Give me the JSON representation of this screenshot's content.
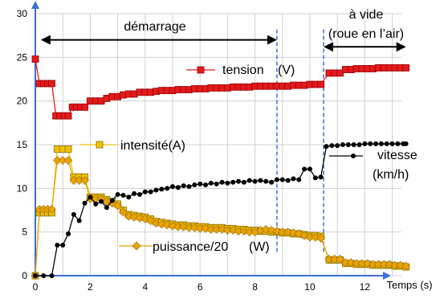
{
  "chart_data": {
    "type": "line",
    "title": "",
    "xlabel": "Temps  (s)",
    "ylabel": "",
    "xlim": [
      0,
      14.3
    ],
    "ylim": [
      0,
      30
    ],
    "x_ticks": [
      "0",
      "2",
      "4",
      "6",
      "8",
      "10",
      "12"
    ],
    "y_ticks": [
      "0",
      "5",
      "10",
      "15",
      "20",
      "25",
      "30"
    ],
    "grid": true,
    "annotations": {
      "demarrage": "démarrage",
      "a_vide_line1": "à vide",
      "a_vide_line2": "(roue en l’air)"
    },
    "phase_markers": [
      8.8,
      10.5
    ],
    "phase_ranges": [
      [
        0.2,
        8.8
      ],
      [
        10.5,
        13.5
      ]
    ],
    "series": [
      {
        "name": "tension (V)",
        "label_text": "tension",
        "unit_text": "(V)",
        "color": "#e31a1c",
        "marker": "square",
        "values": [
          [
            0,
            24.8
          ],
          [
            0.15,
            22
          ],
          [
            0.3,
            22
          ],
          [
            0.45,
            22
          ],
          [
            0.6,
            22
          ],
          [
            0.75,
            18.3
          ],
          [
            0.9,
            18.3
          ],
          [
            1.05,
            18.3
          ],
          [
            1.2,
            18.3
          ],
          [
            1.35,
            19.3
          ],
          [
            1.5,
            19.3
          ],
          [
            1.65,
            19.3
          ],
          [
            1.8,
            19.3
          ],
          [
            2.0,
            20
          ],
          [
            2.2,
            20
          ],
          [
            2.4,
            20
          ],
          [
            2.6,
            20.3
          ],
          [
            2.8,
            20.5
          ],
          [
            3.0,
            20.5
          ],
          [
            3.2,
            20.7
          ],
          [
            3.4,
            20.8
          ],
          [
            3.6,
            20.8
          ],
          [
            3.8,
            21
          ],
          [
            4.0,
            21
          ],
          [
            4.2,
            21
          ],
          [
            4.4,
            21.1
          ],
          [
            4.6,
            21.2
          ],
          [
            4.8,
            21.2
          ],
          [
            5.0,
            21.2
          ],
          [
            5.2,
            21.3
          ],
          [
            5.4,
            21.3
          ],
          [
            5.6,
            21.3
          ],
          [
            5.8,
            21.4
          ],
          [
            6.0,
            21.4
          ],
          [
            6.2,
            21.4
          ],
          [
            6.4,
            21.5
          ],
          [
            6.6,
            21.5
          ],
          [
            6.8,
            21.5
          ],
          [
            7.0,
            21.5
          ],
          [
            7.2,
            21.6
          ],
          [
            7.4,
            21.6
          ],
          [
            7.6,
            21.6
          ],
          [
            7.8,
            21.6
          ],
          [
            8.0,
            21.7
          ],
          [
            8.2,
            21.7
          ],
          [
            8.4,
            21.7
          ],
          [
            8.6,
            21.7
          ],
          [
            8.8,
            21.7
          ],
          [
            9.0,
            21.7
          ],
          [
            9.2,
            21.7
          ],
          [
            9.4,
            21.8
          ],
          [
            9.6,
            21.8
          ],
          [
            9.8,
            21.8
          ],
          [
            10.0,
            21.9
          ],
          [
            10.2,
            21.9
          ],
          [
            10.4,
            21.9
          ],
          [
            10.7,
            23.2
          ],
          [
            10.9,
            23.2
          ],
          [
            11.1,
            23.2
          ],
          [
            11.3,
            23.6
          ],
          [
            11.5,
            23.6
          ],
          [
            11.7,
            23.7
          ],
          [
            11.9,
            23.7
          ],
          [
            12.1,
            23.7
          ],
          [
            12.3,
            23.7
          ],
          [
            12.5,
            23.8
          ],
          [
            12.7,
            23.8
          ],
          [
            12.9,
            23.8
          ],
          [
            13.1,
            23.8
          ],
          [
            13.3,
            23.8
          ],
          [
            13.5,
            23.8
          ]
        ]
      },
      {
        "name": "intensité(A)",
        "label_text": "intensité(A)",
        "unit_text": "",
        "color": "#f2c200",
        "marker": "square",
        "values": [
          [
            0,
            0
          ],
          [
            0.15,
            7.2
          ],
          [
            0.3,
            7.2
          ],
          [
            0.45,
            7.2
          ],
          [
            0.6,
            7.2
          ],
          [
            0.8,
            14.5
          ],
          [
            1.0,
            14.5
          ],
          [
            1.2,
            14.5
          ],
          [
            1.4,
            11.3
          ],
          [
            1.6,
            11.3
          ],
          [
            1.8,
            11.3
          ],
          [
            2.0,
            9
          ],
          [
            2.2,
            9
          ],
          [
            2.4,
            9
          ],
          [
            2.6,
            8.7
          ],
          [
            2.8,
            8.5
          ],
          [
            3.0,
            8.2
          ],
          [
            3.2,
            7.5
          ],
          [
            3.4,
            7
          ],
          [
            3.6,
            6.9
          ],
          [
            3.8,
            6.8
          ],
          [
            4.0,
            6.7
          ],
          [
            4.2,
            6.5
          ],
          [
            4.4,
            6.2
          ],
          [
            4.6,
            6.1
          ],
          [
            4.8,
            6
          ],
          [
            5.0,
            5.9
          ],
          [
            5.2,
            5.8
          ],
          [
            5.4,
            5.8
          ],
          [
            5.6,
            5.7
          ],
          [
            5.8,
            5.7
          ],
          [
            6.0,
            5.6
          ],
          [
            6.2,
            5.6
          ],
          [
            6.4,
            5.5
          ],
          [
            6.6,
            5.5
          ],
          [
            6.8,
            5.5
          ],
          [
            7.0,
            5.4
          ],
          [
            7.2,
            5.4
          ],
          [
            7.4,
            5.3
          ],
          [
            7.6,
            5.3
          ],
          [
            7.8,
            5.2
          ],
          [
            8.0,
            5.2
          ],
          [
            8.2,
            5.1
          ],
          [
            8.4,
            5.1
          ],
          [
            8.6,
            5.0
          ],
          [
            8.8,
            5.0
          ],
          [
            9.0,
            4.9
          ],
          [
            9.2,
            4.9
          ],
          [
            9.4,
            4.8
          ],
          [
            9.6,
            4.8
          ],
          [
            9.8,
            4.7
          ],
          [
            10.0,
            4.6
          ],
          [
            10.2,
            4.6
          ],
          [
            10.4,
            4.5
          ],
          [
            10.7,
            1.8
          ],
          [
            10.9,
            1.8
          ],
          [
            11.1,
            1.8
          ],
          [
            11.3,
            1.4
          ],
          [
            11.5,
            1.4
          ],
          [
            11.7,
            1.3
          ],
          [
            11.9,
            1.3
          ],
          [
            12.1,
            1.3
          ],
          [
            12.3,
            1.2
          ],
          [
            12.5,
            1.2
          ],
          [
            12.7,
            1.2
          ],
          [
            12.9,
            1.2
          ],
          [
            13.1,
            1.1
          ],
          [
            13.3,
            1.1
          ],
          [
            13.5,
            1.0
          ]
        ]
      },
      {
        "name": "puissance/20(W)",
        "label_text": "puissance/20",
        "unit_text": "(W)",
        "color": "#e8a400",
        "marker": "diamond",
        "values": [
          [
            0,
            0
          ],
          [
            0.15,
            7.6
          ],
          [
            0.3,
            7.6
          ],
          [
            0.45,
            7.6
          ],
          [
            0.6,
            7.6
          ],
          [
            0.8,
            13.2
          ],
          [
            1.0,
            13.2
          ],
          [
            1.2,
            13.2
          ],
          [
            1.4,
            10.9
          ],
          [
            1.6,
            10.9
          ],
          [
            1.8,
            10.9
          ],
          [
            2.0,
            8.8
          ],
          [
            2.2,
            8.8
          ],
          [
            2.4,
            8.8
          ],
          [
            2.6,
            8.5
          ],
          [
            2.8,
            8.3
          ],
          [
            3.0,
            8
          ],
          [
            3.2,
            7.3
          ],
          [
            3.4,
            6.8
          ],
          [
            3.6,
            6.7
          ],
          [
            3.8,
            6.6
          ],
          [
            4.0,
            6.5
          ],
          [
            4.2,
            6.3
          ],
          [
            4.4,
            6
          ],
          [
            4.6,
            5.9
          ],
          [
            4.8,
            5.8
          ],
          [
            5.0,
            5.7
          ],
          [
            5.2,
            5.6
          ],
          [
            5.4,
            5.6
          ],
          [
            5.6,
            5.5
          ],
          [
            5.8,
            5.5
          ],
          [
            6.0,
            5.4
          ],
          [
            6.2,
            5.4
          ],
          [
            6.4,
            5.3
          ],
          [
            6.6,
            5.3
          ],
          [
            6.8,
            5.3
          ],
          [
            7.0,
            5.2
          ],
          [
            7.2,
            5.2
          ],
          [
            7.4,
            5.1
          ],
          [
            7.6,
            5.1
          ],
          [
            7.8,
            5.0
          ],
          [
            8.0,
            5.0
          ],
          [
            8.2,
            5.2
          ],
          [
            8.4,
            5.3
          ],
          [
            8.6,
            5.2
          ],
          [
            8.8,
            5.1
          ],
          [
            9.0,
            5.0
          ],
          [
            9.2,
            5.0
          ],
          [
            9.4,
            4.9
          ],
          [
            9.6,
            4.8
          ],
          [
            9.8,
            4.6
          ],
          [
            10.0,
            4.4
          ],
          [
            10.2,
            4.4
          ],
          [
            10.4,
            4.3
          ],
          [
            10.7,
            1.9
          ],
          [
            10.9,
            1.9
          ],
          [
            11.1,
            1.9
          ],
          [
            11.3,
            1.5
          ],
          [
            11.5,
            1.5
          ],
          [
            11.7,
            1.4
          ],
          [
            11.9,
            1.4
          ],
          [
            12.1,
            1.4
          ],
          [
            12.3,
            1.3
          ],
          [
            12.5,
            1.3
          ],
          [
            12.7,
            1.3
          ],
          [
            12.9,
            1.3
          ],
          [
            13.1,
            1.2
          ],
          [
            13.3,
            1.2
          ],
          [
            13.5,
            1.1
          ]
        ]
      },
      {
        "name": "vitesse (km/h)",
        "label_text": "vitesse",
        "unit_text": "(km/h)",
        "color": "#000000",
        "marker": "circle",
        "values": [
          [
            0,
            0
          ],
          [
            0.3,
            0
          ],
          [
            0.6,
            0
          ],
          [
            0.8,
            3.5
          ],
          [
            1.0,
            3.5
          ],
          [
            1.2,
            4.8
          ],
          [
            1.4,
            7
          ],
          [
            1.6,
            6.3
          ],
          [
            1.8,
            8.3
          ],
          [
            2.0,
            9
          ],
          [
            2.2,
            8.2
          ],
          [
            2.4,
            8.5
          ],
          [
            2.6,
            7.8
          ],
          [
            2.8,
            8.6
          ],
          [
            3.0,
            9.3
          ],
          [
            3.2,
            9.2
          ],
          [
            3.4,
            9
          ],
          [
            3.6,
            9.4
          ],
          [
            3.8,
            9.3
          ],
          [
            4.0,
            9.6
          ],
          [
            4.2,
            9.6
          ],
          [
            4.4,
            9.8
          ],
          [
            4.6,
            9.9
          ],
          [
            4.8,
            10
          ],
          [
            5.0,
            10.2
          ],
          [
            5.2,
            10.1
          ],
          [
            5.4,
            10.3
          ],
          [
            5.6,
            10.2
          ],
          [
            5.8,
            10.4
          ],
          [
            6.0,
            10.5
          ],
          [
            6.2,
            10.4
          ],
          [
            6.4,
            10.6
          ],
          [
            6.6,
            10.5
          ],
          [
            6.8,
            10.7
          ],
          [
            7.0,
            10.6
          ],
          [
            7.2,
            10.7
          ],
          [
            7.4,
            10.8
          ],
          [
            7.6,
            10.7
          ],
          [
            7.8,
            10.9
          ],
          [
            8.0,
            10.8
          ],
          [
            8.2,
            10.9
          ],
          [
            8.4,
            10.8
          ],
          [
            8.6,
            10.7
          ],
          [
            8.8,
            11
          ],
          [
            9.0,
            11
          ],
          [
            9.2,
            10.9
          ],
          [
            9.4,
            11.1
          ],
          [
            9.6,
            11
          ],
          [
            9.8,
            12.2
          ],
          [
            10.0,
            12.2
          ],
          [
            10.2,
            11.2
          ],
          [
            10.4,
            11.3
          ],
          [
            10.6,
            14.8
          ],
          [
            10.8,
            14.9
          ],
          [
            11.0,
            14.9
          ],
          [
            11.2,
            15
          ],
          [
            11.4,
            15
          ],
          [
            11.6,
            15
          ],
          [
            11.8,
            15
          ],
          [
            12.0,
            15.1
          ],
          [
            12.2,
            15.1
          ],
          [
            12.4,
            15.1
          ],
          [
            12.6,
            15.1
          ],
          [
            12.8,
            15.1
          ],
          [
            13.0,
            15.1
          ],
          [
            13.2,
            15.1
          ],
          [
            13.4,
            15.1
          ],
          [
            13.5,
            15.1
          ]
        ]
      }
    ]
  }
}
